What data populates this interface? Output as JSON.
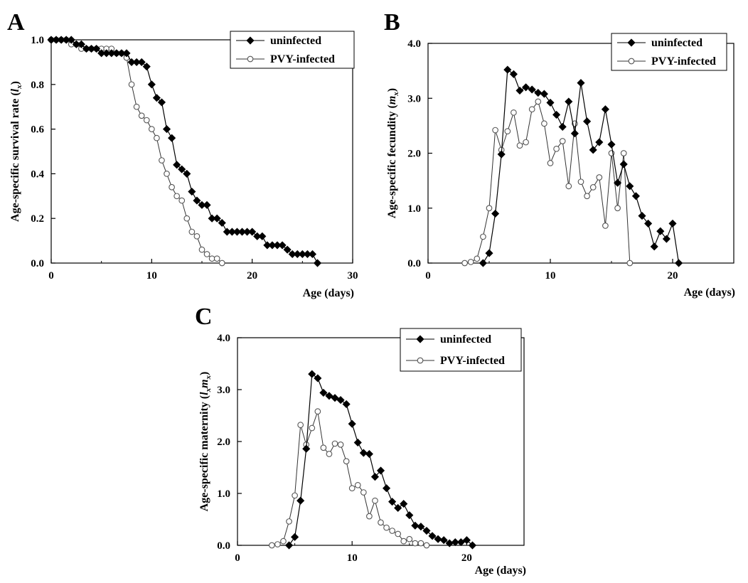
{
  "chart_data": [
    {
      "type": "line",
      "panel": "A",
      "title": "",
      "xlabel": "Age (days)",
      "ylabel": "Age-specific survival rate",
      "ylabel_symbol": "l",
      "ylabel_sub": "x",
      "xlim": [
        0,
        30
      ],
      "ylim": [
        0,
        1.0
      ],
      "xticks": [
        0,
        10,
        20,
        30
      ],
      "xtick_labels": [
        "0",
        "10",
        "20",
        "30"
      ],
      "yticks": [
        0,
        0.2,
        0.4,
        0.6,
        0.8,
        1.0
      ],
      "ytick_labels": [
        "0.0",
        "0.2",
        "0.4",
        "0.6",
        "0.8",
        "1.0"
      ],
      "grid": false,
      "legend_position": "top-right",
      "series": [
        {
          "name": "uninfected",
          "marker": "filled-diamond",
          "x": [
            0,
            0.5,
            1,
            1.5,
            2,
            2.5,
            3,
            3.5,
            4,
            4.5,
            5,
            5.5,
            6,
            6.5,
            7,
            7.5,
            8,
            8.5,
            9,
            9.5,
            10,
            10.5,
            11,
            11.5,
            12,
            12.5,
            13,
            13.5,
            14,
            14.5,
            15,
            15.5,
            16,
            16.5,
            17,
            17.5,
            18,
            18.5,
            19,
            19.5,
            20,
            20.5,
            21,
            21.5,
            22,
            22.5,
            23,
            23.5,
            24,
            24.5,
            25,
            25.5,
            26,
            26.5
          ],
          "y": [
            1.0,
            1.0,
            1.0,
            1.0,
            1.0,
            0.98,
            0.98,
            0.96,
            0.96,
            0.96,
            0.94,
            0.94,
            0.94,
            0.94,
            0.94,
            0.94,
            0.9,
            0.9,
            0.9,
            0.88,
            0.8,
            0.74,
            0.72,
            0.6,
            0.56,
            0.44,
            0.42,
            0.4,
            0.32,
            0.28,
            0.26,
            0.26,
            0.2,
            0.2,
            0.18,
            0.14,
            0.14,
            0.14,
            0.14,
            0.14,
            0.14,
            0.12,
            0.12,
            0.08,
            0.08,
            0.08,
            0.08,
            0.06,
            0.04,
            0.04,
            0.04,
            0.04,
            0.04,
            0.0
          ]
        },
        {
          "name": "PVY-infected",
          "marker": "open-circle",
          "x": [
            0,
            0.5,
            1,
            1.5,
            2,
            2.5,
            3,
            3.5,
            4,
            4.5,
            5,
            5.5,
            6,
            6.5,
            7,
            7.5,
            8,
            8.5,
            9,
            9.5,
            10,
            10.5,
            11,
            11.5,
            12,
            12.5,
            13,
            13.5,
            14,
            14.5,
            15,
            15.5,
            16,
            16.5,
            17
          ],
          "y": [
            1.0,
            1.0,
            1.0,
            1.0,
            0.98,
            0.98,
            0.96,
            0.96,
            0.96,
            0.96,
            0.96,
            0.96,
            0.96,
            0.94,
            0.94,
            0.92,
            0.8,
            0.7,
            0.66,
            0.64,
            0.6,
            0.56,
            0.46,
            0.4,
            0.34,
            0.3,
            0.28,
            0.2,
            0.14,
            0.12,
            0.06,
            0.04,
            0.02,
            0.02,
            0.0
          ]
        }
      ]
    },
    {
      "type": "line",
      "panel": "B",
      "title": "",
      "xlabel": "Age (days)",
      "ylabel": "Age-specific fecundity",
      "ylabel_symbol": "m",
      "ylabel_sub": "x",
      "xlim": [
        0,
        25
      ],
      "ylim": [
        0,
        4.0
      ],
      "xticks": [
        0,
        10,
        20
      ],
      "xtick_labels": [
        "0",
        "10",
        "20"
      ],
      "yticks": [
        0,
        1,
        2,
        3,
        4
      ],
      "ytick_labels": [
        "0.0",
        "1.0",
        "2.0",
        "3.0",
        "4.0"
      ],
      "grid": false,
      "legend_position": "top-right",
      "series": [
        {
          "name": "uninfected",
          "marker": "filled-diamond",
          "x": [
            4.5,
            5,
            5.5,
            6,
            6.5,
            7,
            7.5,
            8,
            8.5,
            9,
            9.5,
            10,
            10.5,
            11,
            11.5,
            12,
            12.5,
            13,
            13.5,
            14,
            14.5,
            15,
            15.5,
            16,
            16.5,
            17,
            17.5,
            18,
            18.5,
            19,
            19.5,
            20,
            20.5
          ],
          "y": [
            0.0,
            0.18,
            0.9,
            1.98,
            3.52,
            3.44,
            3.14,
            3.2,
            3.16,
            3.1,
            3.08,
            2.92,
            2.7,
            2.48,
            2.94,
            2.36,
            3.28,
            2.58,
            2.06,
            2.2,
            2.8,
            2.16,
            1.46,
            1.8,
            1.4,
            1.22,
            0.86,
            0.72,
            0.3,
            0.58,
            0.44,
            0.72,
            0.0
          ]
        },
        {
          "name": "PVY-infected",
          "marker": "open-circle",
          "x": [
            3,
            3.5,
            4,
            4.5,
            5,
            5.5,
            6,
            6.5,
            7,
            7.5,
            8,
            8.5,
            9,
            9.5,
            10,
            10.5,
            11,
            11.5,
            12,
            12.5,
            13,
            13.5,
            14,
            14.5,
            15,
            15.5,
            16,
            16.5
          ],
          "y": [
            0.0,
            0.02,
            0.08,
            0.48,
            1.0,
            2.42,
            2.06,
            2.4,
            2.74,
            2.14,
            2.2,
            2.8,
            2.94,
            2.54,
            1.82,
            2.08,
            2.22,
            1.4,
            2.54,
            1.48,
            1.22,
            1.38,
            1.56,
            0.68,
            2.0,
            1.0,
            2.0,
            0.0
          ]
        }
      ]
    },
    {
      "type": "line",
      "panel": "C",
      "title": "",
      "xlabel": "Age (days)",
      "ylabel": "Age-specific maternity",
      "ylabel_symbol": "l",
      "ylabel_sub": "x",
      "ylabel_symbol2": "m",
      "ylabel_sub2": "x",
      "xlim": [
        0,
        25
      ],
      "ylim": [
        0,
        4.0
      ],
      "xticks": [
        0,
        10,
        20
      ],
      "xtick_labels": [
        "0",
        "10",
        "20"
      ],
      "yticks": [
        0,
        1,
        2,
        3,
        4
      ],
      "ytick_labels": [
        "0.0",
        "1.0",
        "2.0",
        "3.0",
        "4.0"
      ],
      "grid": false,
      "legend_position": "top-right",
      "series": [
        {
          "name": "uninfected",
          "marker": "filled-diamond",
          "x": [
            4.5,
            5,
            5.5,
            6,
            6.5,
            7,
            7.5,
            8,
            8.5,
            9,
            9.5,
            10,
            10.5,
            11,
            11.5,
            12,
            12.5,
            13,
            13.5,
            14,
            14.5,
            15,
            15.5,
            16,
            16.5,
            17,
            17.5,
            18,
            18.5,
            19,
            19.5,
            20,
            20.5
          ],
          "y": [
            0.0,
            0.16,
            0.86,
            1.86,
            3.3,
            3.22,
            2.94,
            2.88,
            2.84,
            2.8,
            2.72,
            2.34,
            1.98,
            1.78,
            1.76,
            1.32,
            1.44,
            1.1,
            0.84,
            0.72,
            0.8,
            0.58,
            0.38,
            0.36,
            0.28,
            0.18,
            0.12,
            0.1,
            0.04,
            0.06,
            0.06,
            0.1,
            0.0
          ]
        },
        {
          "name": "PVY-infected",
          "marker": "open-circle",
          "x": [
            3,
            3.5,
            4,
            4.5,
            5,
            5.5,
            6,
            6.5,
            7,
            7.5,
            8,
            8.5,
            9,
            9.5,
            10,
            10.5,
            11,
            11.5,
            12,
            12.5,
            13,
            13.5,
            14,
            14.5,
            15,
            15.5,
            16,
            16.5
          ],
          "y": [
            0.0,
            0.02,
            0.08,
            0.46,
            0.96,
            2.32,
            1.94,
            2.26,
            2.58,
            1.88,
            1.76,
            1.96,
            1.94,
            1.62,
            1.1,
            1.16,
            1.02,
            0.56,
            0.86,
            0.44,
            0.34,
            0.28,
            0.22,
            0.08,
            0.12,
            0.04,
            0.04,
            0.0
          ]
        }
      ]
    }
  ]
}
